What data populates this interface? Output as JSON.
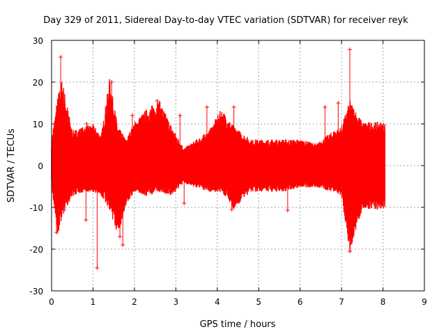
{
  "chart_data": {
    "type": "line",
    "title": "Day 329 of 2011, Sidereal Day-to-day VTEC variation (SDTVAR) for receiver reyk",
    "xlabel": "GPS time / hours",
    "ylabel": "SDTVAR / TECUs",
    "xlim": [
      0,
      9
    ],
    "ylim": [
      -30,
      30
    ],
    "xticks": [
      "0",
      "1",
      "2",
      "3",
      "4",
      "5",
      "6",
      "7",
      "8",
      "9"
    ],
    "yticks": [
      "-30",
      "-20",
      "-10",
      "0",
      "10",
      "20",
      "30"
    ],
    "grid": true,
    "color": "#ff0000",
    "series": [
      {
        "name": "SDTVAR",
        "style": "error bars",
        "x": [
          0.0,
          0.15,
          0.25,
          0.5,
          0.8,
          1.0,
          1.2,
          1.4,
          1.6,
          1.8,
          2.0,
          2.3,
          2.6,
          2.9,
          3.2,
          3.5,
          3.8,
          4.1,
          4.4,
          4.8,
          5.2,
          5.6,
          6.0,
          6.4,
          6.8,
          7.0,
          7.2,
          7.5,
          7.8,
          8.05
        ],
        "upper": [
          6,
          16,
          20,
          8,
          9,
          9.5,
          7,
          20,
          9,
          6,
          10,
          13,
          15,
          9,
          4,
          6,
          8,
          13,
          9,
          6,
          6,
          6,
          6,
          5,
          8,
          9,
          15,
          10,
          10,
          10
        ],
        "lower": [
          -5,
          -16,
          -12,
          -7,
          -6,
          -6,
          -7,
          -10,
          -16,
          -9,
          -6,
          -7,
          -6,
          -7,
          -4,
          -5,
          -6,
          -6,
          -10,
          -6,
          -6,
          -6,
          -5,
          -5,
          -6,
          -7,
          -20,
          -10,
          -10,
          -10
        ],
        "outliers_high": [
          [
            0.22,
            26
          ],
          [
            0.85,
            10
          ],
          [
            1.45,
            20
          ],
          [
            1.95,
            12
          ],
          [
            2.55,
            15.5
          ],
          [
            3.1,
            12
          ],
          [
            3.75,
            14
          ],
          [
            4.4,
            14
          ],
          [
            6.6,
            14
          ],
          [
            6.92,
            15
          ],
          [
            7.2,
            27.8
          ]
        ],
        "outliers_low": [
          [
            0.12,
            -16
          ],
          [
            0.83,
            -13
          ],
          [
            1.1,
            -24.5
          ],
          [
            1.65,
            -17
          ],
          [
            1.72,
            -19
          ],
          [
            3.2,
            -9
          ],
          [
            4.35,
            -10.5
          ],
          [
            5.7,
            -10.7
          ],
          [
            7.2,
            -20.5
          ]
        ]
      }
    ]
  }
}
